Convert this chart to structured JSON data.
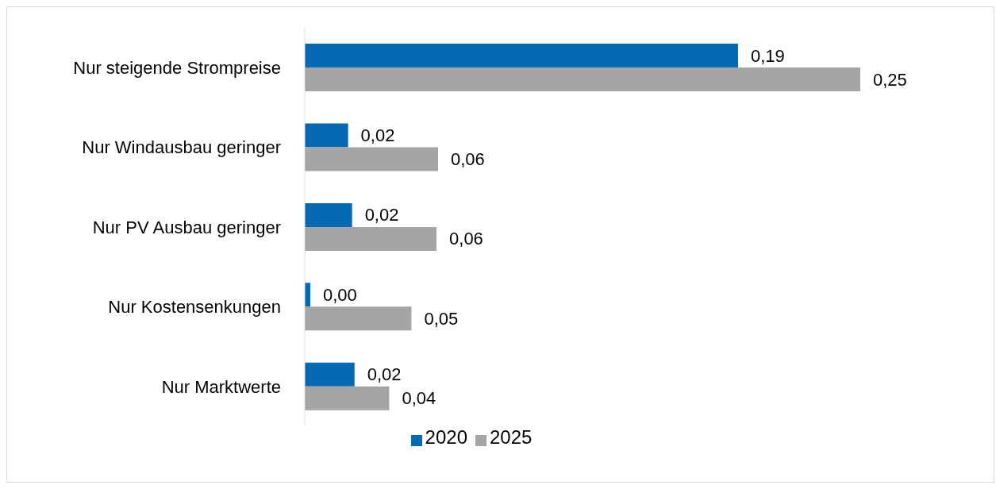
{
  "chart_data": {
    "type": "bar",
    "orientation": "horizontal",
    "categories": [
      "Nur steigende Strompreise",
      "Nur Windausbau geringer",
      "Nur PV Ausbau geringer",
      "Nur Kostensenkungen",
      "Nur Marktwerte"
    ],
    "series": [
      {
        "name": "2020",
        "color": "#0569b3",
        "values": [
          0.195,
          0.0195,
          0.0213,
          0.0025,
          0.0224
        ],
        "value_labels": [
          "0,19",
          "0,02",
          "0,02",
          "0,00",
          "0,02"
        ]
      },
      {
        "name": "2025",
        "color": "#a5a5a5",
        "values": [
          0.25,
          0.06,
          0.0593,
          0.048,
          0.038
        ],
        "value_labels": [
          "0,25",
          "0,06",
          "0,06",
          "0,05",
          "0,04"
        ]
      }
    ],
    "legend": "bottom",
    "grid": false
  }
}
